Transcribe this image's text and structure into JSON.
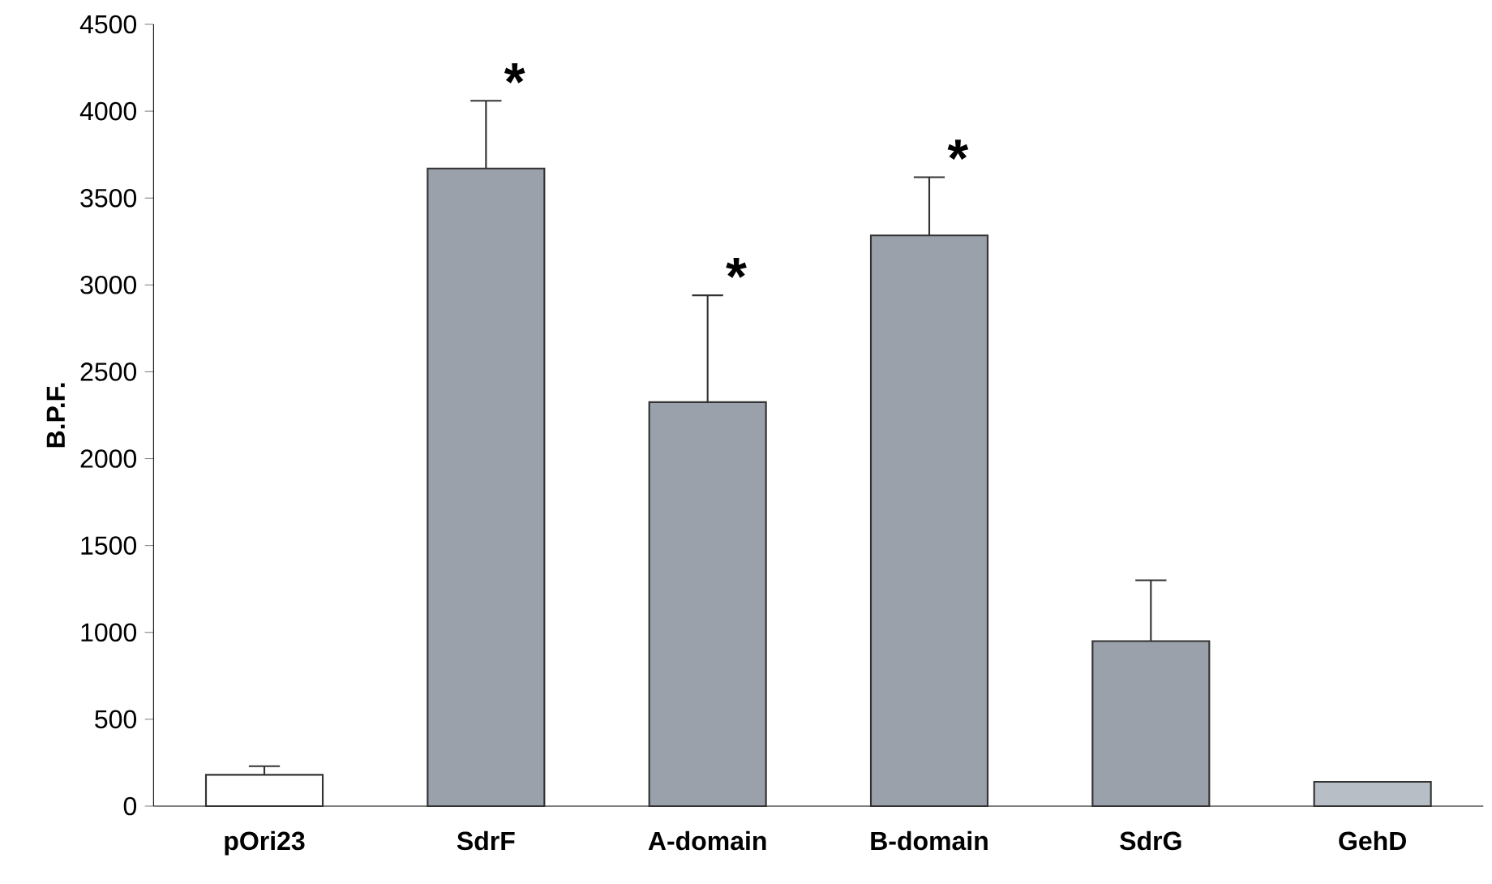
{
  "chart_data": {
    "type": "bar",
    "ylabel": "B.P.F.",
    "categories": [
      "pOri23",
      "SdrF",
      "A-domain",
      "B-domain",
      "SdrG",
      "GehD"
    ],
    "values": [
      180,
      3670,
      2325,
      3285,
      950,
      140
    ],
    "colors": [
      "#ffffff",
      "#9aa1aa",
      "#9aa1aa",
      "#9aa1aa",
      "#9aa1aa",
      "#b8bec6"
    ],
    "errors": [
      [
        180,
        230
      ],
      [
        3670,
        4060
      ],
      [
        2325,
        2940
      ],
      [
        3285,
        3620
      ],
      [
        950,
        1300
      ],
      null
    ],
    "ylim": [
      0,
      4500
    ],
    "yticks": [
      0,
      500,
      1000,
      1500,
      2000,
      2500,
      3000,
      3500,
      4000,
      4500
    ],
    "annotations": [
      {
        "text": "*",
        "x": "SdrF",
        "y": 4060
      },
      {
        "text": "*",
        "x": "A-domain",
        "y": 2940
      },
      {
        "text": "*",
        "x": "B-domain",
        "y": 3620
      }
    ]
  }
}
